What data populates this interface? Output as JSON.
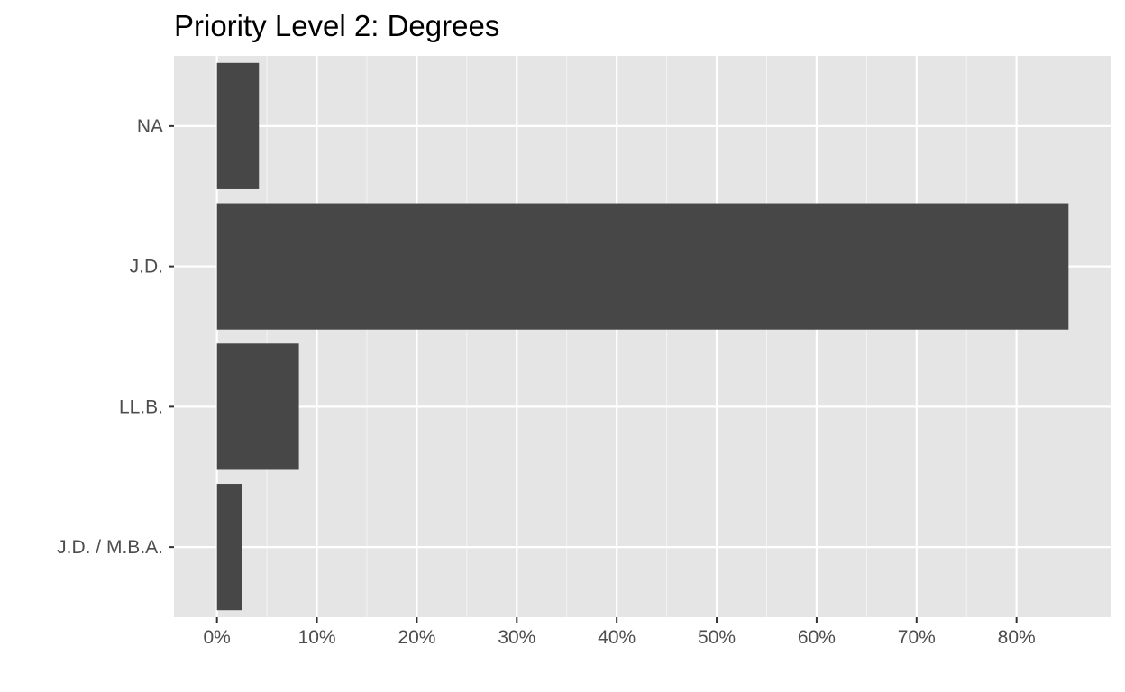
{
  "chart_data": {
    "type": "bar",
    "orientation": "horizontal",
    "title": "Priority Level 2: Degrees",
    "xlabel": "",
    "ylabel": "",
    "categories": [
      "NA",
      "J.D.",
      "LL.B.",
      "J.D. / M.B.A."
    ],
    "values": [
      4.2,
      85.2,
      8.2,
      2.5
    ],
    "value_unit": "percent",
    "xlim": [
      -4.3,
      89.5
    ],
    "xticks": [
      0,
      10,
      20,
      30,
      40,
      50,
      60,
      70,
      80
    ],
    "xtick_labels": [
      "0%",
      "10%",
      "20%",
      "30%",
      "40%",
      "50%",
      "60%",
      "70%",
      "80%"
    ],
    "grid": true,
    "legend": "none",
    "colors": {
      "bar": "#474747",
      "panel": "#e5e5e5",
      "grid_major": "#ffffff",
      "tick": "#333333",
      "tick_label": "#4d4d4d",
      "title": "#000000"
    }
  }
}
